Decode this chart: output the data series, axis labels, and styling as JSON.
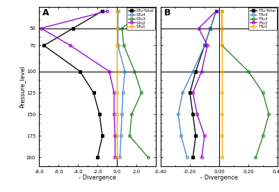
{
  "pressure_levels": [
    30,
    50,
    70,
    100,
    125,
    150,
    175,
    200
  ],
  "panel_A": {
    "label": "A",
    "xlabel": "- Divergence",
    "xlim": [
      -8.0,
      4.0
    ],
    "xticks": [
      -8.0,
      -6.0,
      -4.0,
      -2.0,
      0.0,
      2.0,
      4.0
    ],
    "xtick_labels": [
      "-8.0",
      "-6.0",
      "-4.0",
      "-2.0",
      "0.0",
      "2.0",
      ""
    ],
    "series": [
      {
        "name": "STu-Total",
        "color": "#000000",
        "marker": "s",
        "mfc": "#000000",
        "values": [
          -1.5,
          -4.5,
          -7.5,
          -3.8,
          -2.4,
          -1.8,
          -1.5,
          -2.0
        ]
      },
      {
        "name": "STu4",
        "color": "#4488cc",
        "marker": "o",
        "mfc": "none",
        "values": [
          0.1,
          0.1,
          0.1,
          0.8,
          0.6,
          0.5,
          0.4,
          0.3
        ]
      },
      {
        "name": "STu3",
        "color": "#228822",
        "marker": "o",
        "mfc": "none",
        "values": [
          2.8,
          0.5,
          0.7,
          1.8,
          2.5,
          1.5,
          1.3,
          3.2
        ]
      },
      {
        "name": "STu2",
        "color": "#9900cc",
        "marker": "o",
        "mfc": "none",
        "values": [
          -1.0,
          -7.8,
          -4.8,
          -0.8,
          -0.3,
          -0.3,
          -0.2,
          -0.2
        ]
      },
      {
        "name": "STu1",
        "color": "#ffaa00",
        "marker": "o",
        "mfc": "none",
        "values": [
          0.0,
          0.0,
          0.0,
          0.0,
          0.0,
          0.0,
          0.0,
          0.0
        ]
      }
    ]
  },
  "panel_B": {
    "label": "B",
    "xlabel": "- Divergence",
    "xlim": [
      -0.4,
      0.4
    ],
    "xticks": [
      -0.4,
      -0.2,
      0.0,
      0.2,
      0.4
    ],
    "xtick_labels": [
      "-0.40",
      "-0.20",
      "0.00",
      "0.20",
      "0.40"
    ],
    "series": [
      {
        "name": "TTu-Total",
        "color": "#000000",
        "marker": "s",
        "mfc": "#000000",
        "values": [
          -0.02,
          -0.06,
          -0.1,
          -0.16,
          -0.2,
          -0.18,
          -0.16,
          -0.18
        ]
      },
      {
        "name": "TTu4",
        "color": "#4488cc",
        "marker": "o",
        "mfc": "none",
        "values": [
          -0.02,
          -0.06,
          -0.1,
          -0.18,
          -0.25,
          -0.28,
          -0.26,
          -0.22
        ]
      },
      {
        "name": "TTu3",
        "color": "#228822",
        "marker": "o",
        "mfc": "none",
        "values": [
          0.02,
          0.02,
          0.02,
          0.2,
          0.3,
          0.34,
          0.3,
          0.25
        ]
      },
      {
        "name": "TTu2",
        "color": "#9900cc",
        "marker": "o",
        "mfc": "none",
        "values": [
          -0.02,
          -0.14,
          -0.08,
          -0.12,
          -0.18,
          -0.15,
          -0.1,
          -0.12
        ]
      },
      {
        "name": "TTu1",
        "color": "#ffaa00",
        "marker": "o",
        "mfc": "none",
        "values": [
          0.02,
          0.02,
          0.02,
          0.02,
          0.02,
          0.02,
          0.02,
          0.02
        ]
      }
    ]
  },
  "ylabel": "Pressure_level",
  "ylim": [
    210,
    25
  ],
  "yticks": [
    50,
    70,
    100,
    125,
    150,
    175,
    200
  ],
  "grid_hlines": [
    50,
    100
  ],
  "background_color": "#ffffff"
}
